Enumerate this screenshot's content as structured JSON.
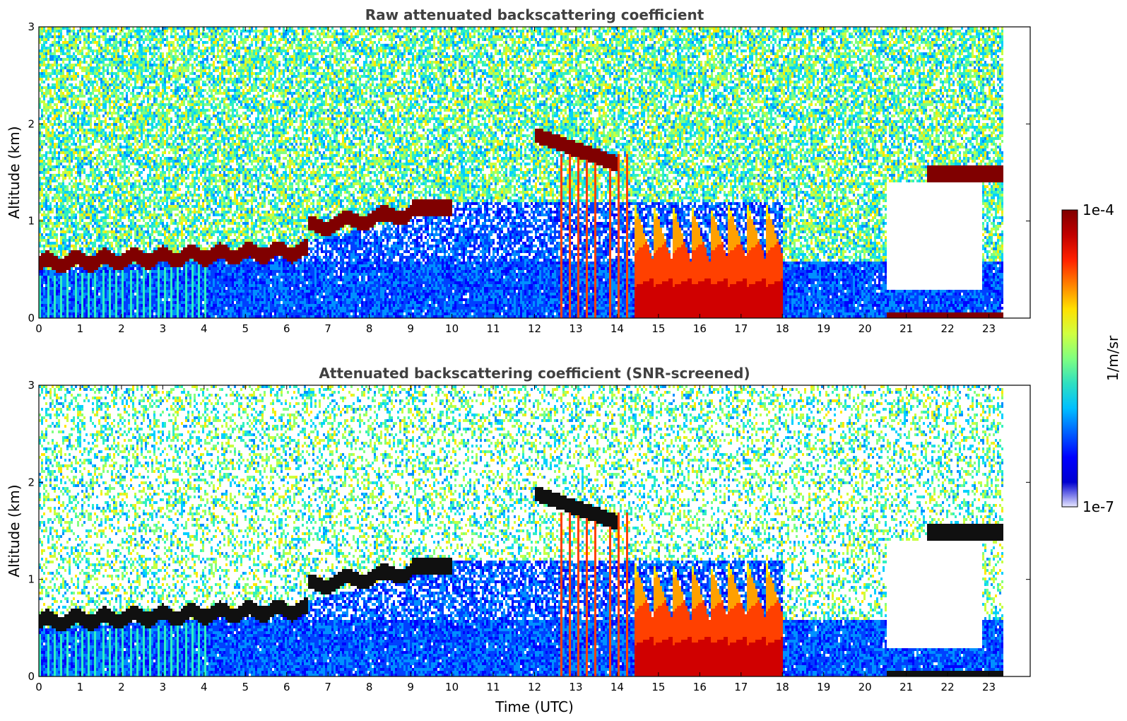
{
  "chart_data": [
    {
      "type": "heatmap",
      "title": "Raw attenuated backscattering coefficient",
      "xlabel": "",
      "ylabel": "Altitude (km)",
      "xlim": [
        0,
        24
      ],
      "ylim": [
        0,
        3
      ],
      "xticks": [
        "0",
        "1",
        "2",
        "3",
        "4",
        "5",
        "6",
        "7",
        "8",
        "9",
        "10",
        "11",
        "12",
        "13",
        "14",
        "15",
        "16",
        "17",
        "18",
        "19",
        "20",
        "21",
        "22",
        "23"
      ],
      "yticks": [
        "0",
        "1",
        "2",
        "3"
      ],
      "data_end_hour": 23.3,
      "screened": false
    },
    {
      "type": "heatmap",
      "title": "Attenuated backscattering coefficient (SNR-screened)",
      "xlabel": "Time (UTC)",
      "ylabel": "Altitude (km)",
      "xlim": [
        0,
        24
      ],
      "ylim": [
        0,
        3
      ],
      "xticks": [
        "0",
        "1",
        "2",
        "3",
        "4",
        "5",
        "6",
        "7",
        "8",
        "9",
        "10",
        "11",
        "12",
        "13",
        "14",
        "15",
        "16",
        "17",
        "18",
        "19",
        "20",
        "21",
        "22",
        "23"
      ],
      "yticks": [
        "0",
        "1",
        "2",
        "3"
      ],
      "data_end_hour": 23.3,
      "screened": true
    }
  ],
  "colorbar": {
    "label": "1/m/sr",
    "max_label": "1e-4",
    "min_label": "1e-7",
    "colors": [
      "#e8e8ff",
      "#0000d0",
      "#0000ff",
      "#0060ff",
      "#00c0ff",
      "#30e0c0",
      "#80ff80",
      "#d0ff40",
      "#ffe000",
      "#ff8000",
      "#ff2000",
      "#c00000",
      "#800000"
    ]
  }
}
